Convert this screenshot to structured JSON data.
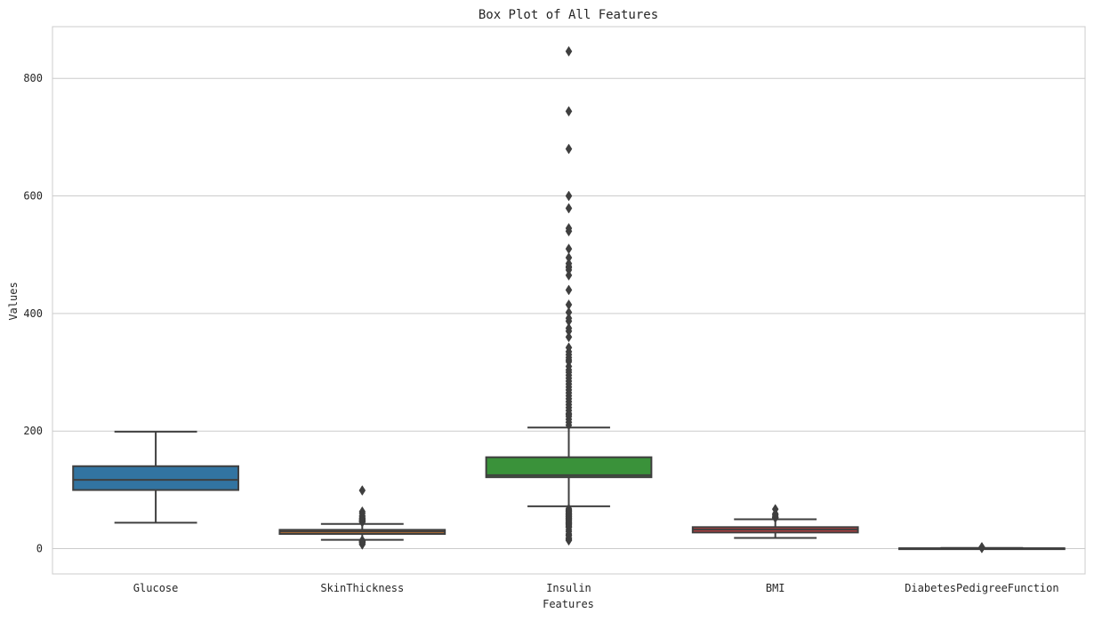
{
  "chart_data": {
    "type": "box",
    "title": "Box Plot of All Features",
    "xlabel": "Features",
    "ylabel": "Values",
    "ylim": [
      -43,
      888
    ],
    "yticks": [
      0,
      200,
      400,
      600,
      800
    ],
    "grid": "horizontal",
    "categories": [
      "Glucose",
      "SkinThickness",
      "Insulin",
      "BMI",
      "DiabetesPedigreeFunction"
    ],
    "boxes": [
      {
        "name": "Glucose",
        "color": "#3274a1",
        "whisker_low": 44,
        "q1": 99.75,
        "median": 117,
        "q3": 140.25,
        "whisker_high": 199,
        "outliers": []
      },
      {
        "name": "SkinThickness",
        "color": "#e1812c",
        "whisker_low": 15,
        "q1": 25,
        "median": 29,
        "q3": 32,
        "whisker_high": 42,
        "outliers": [
          7,
          8,
          10,
          10,
          11,
          11,
          12,
          12,
          13,
          13,
          13,
          14,
          14,
          45,
          46,
          46,
          47,
          47,
          48,
          49,
          50,
          51,
          52,
          54,
          56,
          60,
          63,
          99
        ]
      },
      {
        "name": "Insulin",
        "color": "#3a923a",
        "whisker_low": 72,
        "q1": 121.5,
        "median": 125,
        "q3": 155.5,
        "whisker_high": 206,
        "outliers": [
          14,
          15,
          16,
          18,
          18,
          22,
          23,
          25,
          29,
          32,
          36,
          37,
          38,
          40,
          41,
          42,
          43,
          44,
          45,
          46,
          48,
          49,
          50,
          51,
          52,
          53,
          54,
          55,
          56,
          57,
          58,
          59,
          60,
          61,
          63,
          64,
          65,
          66,
          68,
          210,
          215,
          220,
          225,
          228,
          230,
          235,
          240,
          245,
          250,
          255,
          260,
          265,
          270,
          275,
          280,
          285,
          290,
          295,
          300,
          304,
          310,
          318,
          321,
          325,
          330,
          335,
          342,
          360,
          370,
          375,
          387,
          392,
          402,
          415,
          440,
          465,
          474,
          478,
          480,
          485,
          495,
          510,
          540,
          545,
          579,
          600,
          680,
          744,
          846
        ]
      },
      {
        "name": "BMI",
        "color": "#c03d3e",
        "whisker_low": 18.2,
        "q1": 27.5,
        "median": 32.3,
        "q3": 36.6,
        "whisker_high": 50,
        "outliers": [
          52.3,
          52.9,
          53.2,
          55,
          57.3,
          59.4,
          67.1
        ]
      },
      {
        "name": "DiabetesPedigreeFunction",
        "color": "#9372b2",
        "whisker_low": 0.078,
        "q1": 0.24,
        "median": 0.37,
        "q3": 0.63,
        "whisker_high": 1.19,
        "outliers": [
          1.2,
          1.3,
          1.4,
          1.5,
          1.6,
          1.7,
          1.8,
          1.9,
          2.1,
          2.3,
          2.42
        ]
      }
    ]
  }
}
